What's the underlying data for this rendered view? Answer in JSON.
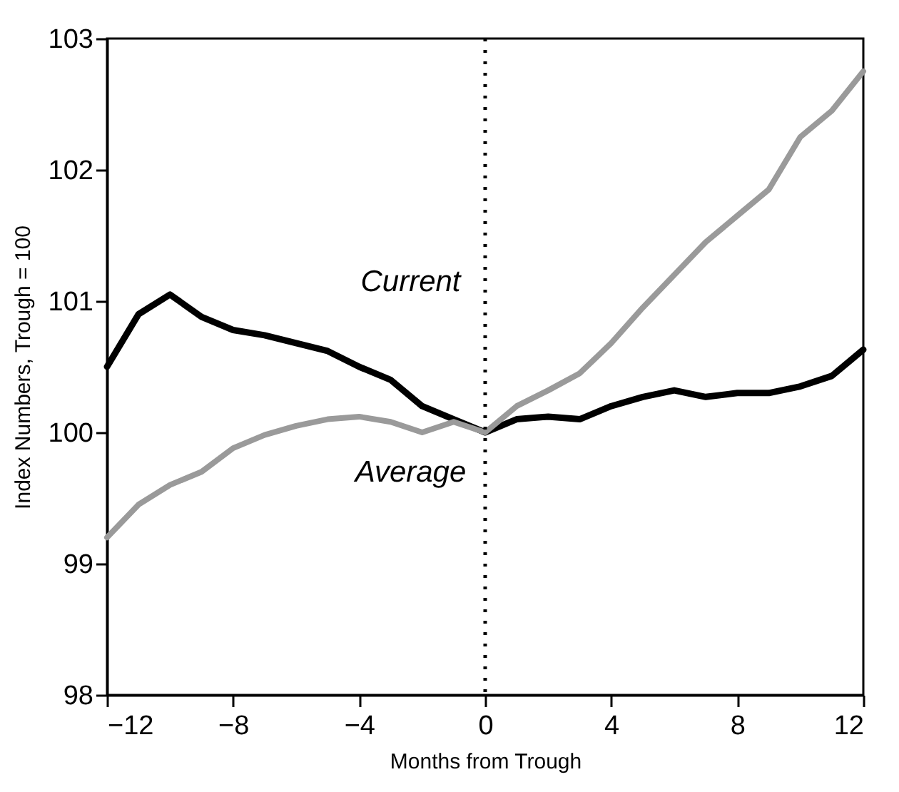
{
  "chart_data": {
    "type": "line",
    "xlabel": "Months from Trough",
    "ylabel": "Index Numbers, Trough = 100",
    "x": [
      -12,
      -11,
      -10,
      -9,
      -8,
      -7,
      -6,
      -5,
      -4,
      -3,
      -2,
      -1,
      0,
      1,
      2,
      3,
      4,
      5,
      6,
      7,
      8,
      9,
      10,
      11,
      12
    ],
    "series": [
      {
        "name": "Current",
        "color": "#000000",
        "values": [
          100.5,
          100.9,
          101.05,
          100.88,
          100.78,
          100.74,
          100.68,
          100.62,
          100.5,
          100.4,
          100.2,
          100.1,
          100.0,
          100.1,
          100.12,
          100.1,
          100.2,
          100.27,
          100.32,
          100.27,
          100.3,
          100.3,
          100.35,
          100.43,
          100.63
        ]
      },
      {
        "name": "Average",
        "color": "#9a9a9a",
        "values": [
          99.2,
          99.45,
          99.6,
          99.7,
          99.88,
          99.98,
          100.05,
          100.1,
          100.12,
          100.08,
          100.0,
          100.08,
          100.0,
          100.2,
          100.32,
          100.45,
          100.68,
          100.95,
          101.2,
          101.45,
          101.65,
          101.85,
          102.25,
          102.45,
          102.75
        ]
      }
    ],
    "xlim": [
      -12,
      12
    ],
    "xticks": [
      {
        "value": -12,
        "label": "−12"
      },
      {
        "value": -8,
        "label": "−8"
      },
      {
        "value": -4,
        "label": "−4"
      },
      0,
      4,
      8,
      12
    ],
    "ylim": [
      98,
      103
    ],
    "yticks": [
      98,
      99,
      100,
      101,
      102,
      103
    ],
    "ref_lines": [
      {
        "axis": "x",
        "value": 0,
        "line_style": "dotted",
        "color": "#000000"
      }
    ],
    "grid": false,
    "line_style": "solid",
    "marker": "none"
  }
}
